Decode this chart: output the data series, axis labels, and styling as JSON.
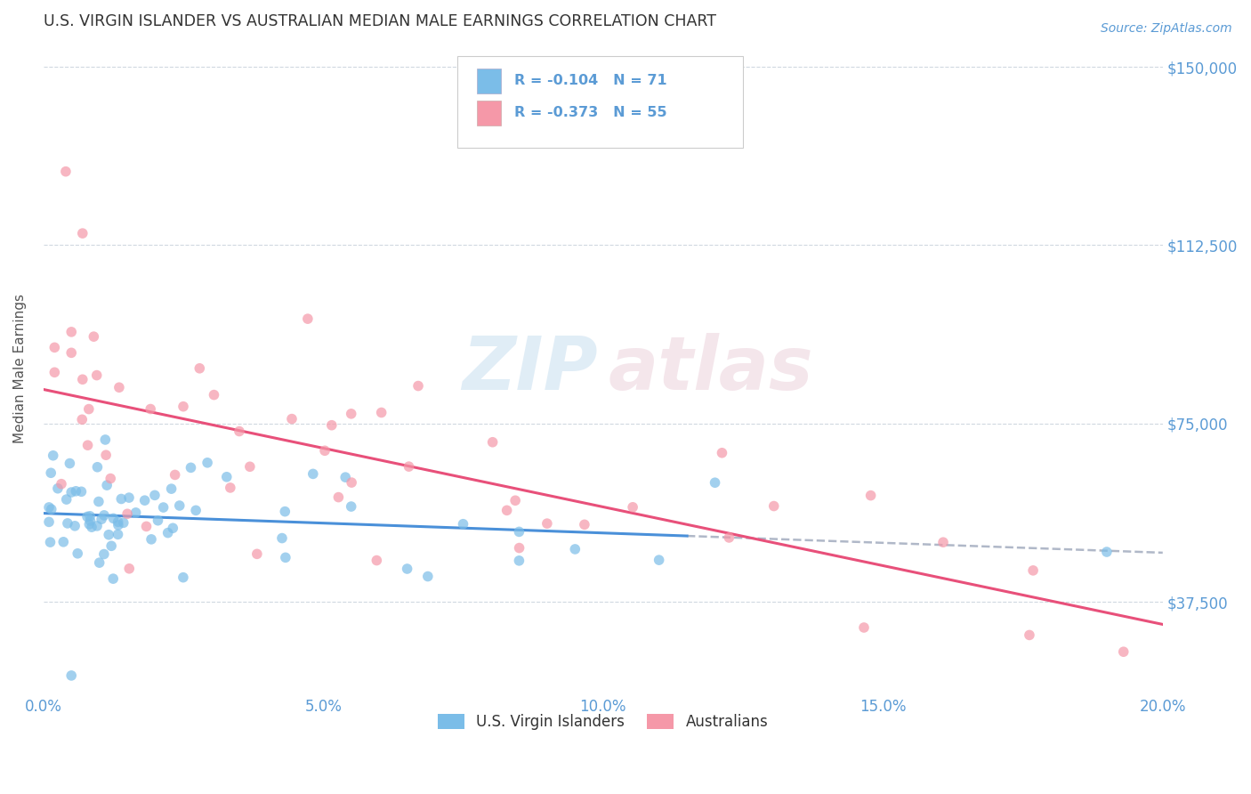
{
  "title": "U.S. VIRGIN ISLANDER VS AUSTRALIAN MEDIAN MALE EARNINGS CORRELATION CHART",
  "source": "Source: ZipAtlas.com",
  "ylabel": "Median Male Earnings",
  "xlim": [
    0.0,
    0.2
  ],
  "ylim": [
    18000,
    155000
  ],
  "yticks": [
    37500,
    75000,
    112500,
    150000
  ],
  "ytick_labels": [
    "$37,500",
    "$75,000",
    "$112,500",
    "$150,000"
  ],
  "xtick_labels": [
    "0.0%",
    "5.0%",
    "10.0%",
    "15.0%",
    "20.0%"
  ],
  "xticks": [
    0.0,
    0.05,
    0.1,
    0.15,
    0.2
  ],
  "blue_color": "#7bbde8",
  "pink_color": "#f598a8",
  "blue_line_color": "#4a90d9",
  "pink_line_color": "#e8507a",
  "dashed_line_color": "#b0b8c8",
  "legend_blue_label": "R = -0.104   N = 71",
  "legend_pink_label": "R = -0.373   N = 55",
  "legend_bottom_blue": "U.S. Virgin Islanders",
  "legend_bottom_pink": "Australians",
  "title_color": "#333333",
  "axis_color": "#5b9bd5",
  "background_color": "#ffffff"
}
